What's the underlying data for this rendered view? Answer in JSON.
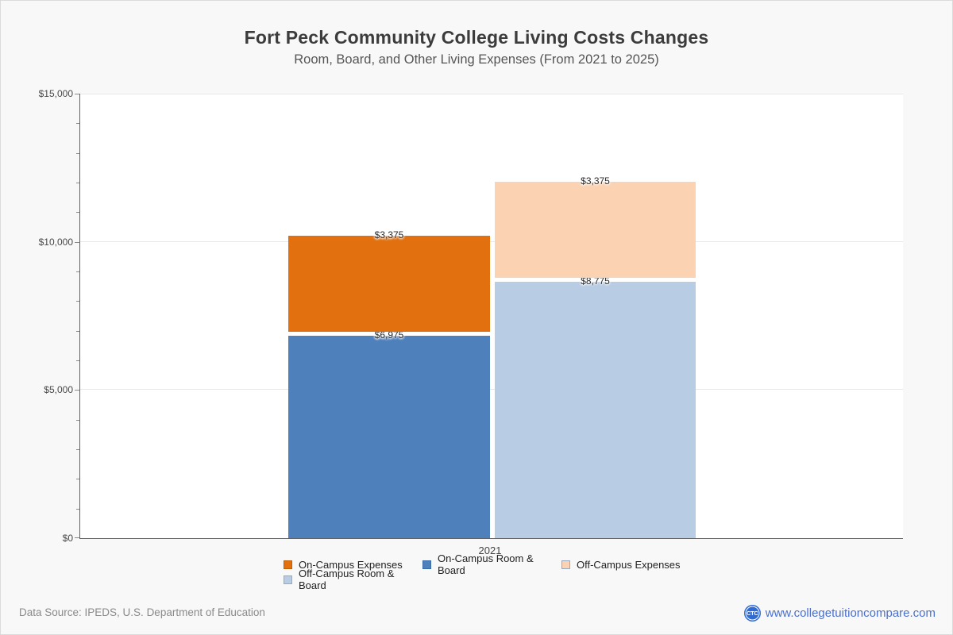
{
  "header": {
    "title": "Fort Peck Community College Living Costs Changes",
    "subtitle": "Room, Board, and Other Living Expenses (From 2021 to 2025)"
  },
  "chart_data": {
    "type": "bar",
    "variant": "stacked-grouped",
    "x_categories": [
      "2021"
    ],
    "x_label": "2021",
    "y_axis": {
      "min": 0,
      "max": 15000,
      "tick_step_major": 5000,
      "tick_step_minor": 1000,
      "tick_labels": [
        "$0",
        "$5,000",
        "$10,000",
        "$15,000"
      ]
    },
    "grid": "horizontal-major",
    "bars": [
      {
        "name": "on-campus",
        "total": 10350,
        "segments": [
          {
            "label": "On-Campus Room & Board",
            "value": 6975,
            "display": "$6,975",
            "color": "#4E80BC"
          },
          {
            "label": "On-Campus Expenses",
            "value": 3375,
            "display": "$3,375",
            "color": "#E2700F"
          }
        ]
      },
      {
        "name": "off-campus",
        "total": 12150,
        "segments": [
          {
            "label": "Off-Campus Room & Board",
            "value": 8775,
            "display": "$8,775",
            "color": "#B8CCE4"
          },
          {
            "label": "Off-Campus Expenses",
            "value": 3375,
            "display": "$3,375",
            "color": "#FBD3B2"
          }
        ]
      }
    ],
    "legend_position": "bottom",
    "legend": [
      {
        "label": "On-Campus Expenses",
        "color": "#E2700F",
        "border": "#C05F08"
      },
      {
        "label": "On-Campus Room & Board",
        "color": "#4E80BC",
        "border": "#3A6AA6"
      },
      {
        "label": "Off-Campus Expenses",
        "color": "#FBD3B2",
        "border": "#97A9C2"
      },
      {
        "label": "Off-Campus Room & Board",
        "color": "#B8CCE4",
        "border": "#97A9C2"
      }
    ]
  },
  "footer": {
    "source": "Data Source: IPEDS, U.S. Department of Education",
    "logo_text": "CTC",
    "site": "www.collegetuitioncompare.com"
  },
  "colors": {
    "background": "#F8F8F8",
    "plot_background": "#FFFFFF",
    "axis": "#616161",
    "gridline": "#E8E8E8",
    "title": "#3C3C3C",
    "link_blue": "#4A70CE",
    "logo_blue": "#2E6BD6"
  }
}
